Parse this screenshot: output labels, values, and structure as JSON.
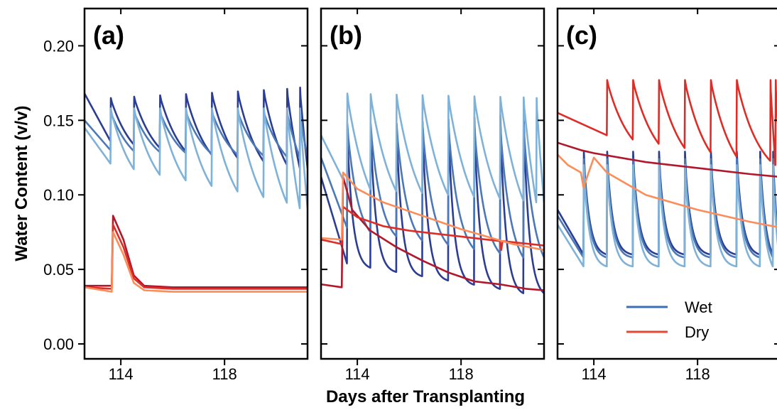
{
  "chart_data": {
    "type": "line",
    "xlabel": "Days after Transplanting",
    "ylabel": "Water Content (v/v)",
    "xlim": [
      112.6,
      121.2
    ],
    "ylim": [
      -0.01,
      0.225
    ],
    "x_ticks": [
      114,
      118
    ],
    "y_ticks": [
      0.0,
      0.05,
      0.1,
      0.15,
      0.2
    ],
    "y_tick_labels": [
      "0.00",
      "0.05",
      "0.10",
      "0.15",
      "0.20"
    ],
    "legend": {
      "placement": "bottom-right of panel (c)",
      "entries": [
        {
          "label": "Wet",
          "color": "#3a6fb7"
        },
        {
          "label": "Dry",
          "color": "#e34a33"
        }
      ]
    },
    "panels": [
      {
        "label": "(a)",
        "series": [
          {
            "group": "wet",
            "color": "#2c3e94",
            "start_x": 112.6,
            "start_y": 0.168,
            "tip": 0.165,
            "trough": 0.136,
            "tip_trend": 0.007,
            "trough_trend": -0.018,
            "recess": "slow",
            "events": [
              113.6,
              114.5,
              115.5,
              116.5,
              117.5,
              118.5,
              119.5,
              120.4,
              120.9
            ],
            "end_x": 121.2
          },
          {
            "group": "wet",
            "color": "#4a78b8",
            "start_x": 112.6,
            "start_y": 0.15,
            "tip": 0.156,
            "trough": 0.13,
            "tip_trend": 0.0,
            "trough_trend": -0.005,
            "recess": "slow",
            "events": [
              113.6,
              114.5,
              115.5,
              116.5,
              117.5,
              118.5,
              119.5,
              120.4,
              120.9
            ],
            "end_x": 121.2
          },
          {
            "group": "wet",
            "color": "#7fb2d9",
            "start_x": 112.6,
            "start_y": 0.145,
            "tip": 0.158,
            "trough": 0.121,
            "tip_trend": 0.0,
            "trough_trend": -0.03,
            "recess": "slow",
            "events": [
              113.6,
              114.5,
              115.5,
              116.5,
              117.5,
              118.5,
              119.5,
              120.4,
              120.9
            ],
            "end_x": 121.2
          },
          {
            "group": "dry",
            "color": "#b2182b",
            "points": [
              [
                112.6,
                0.039
              ],
              [
                113.65,
                0.039
              ],
              [
                113.7,
                0.086
              ],
              [
                114.1,
                0.07
              ],
              [
                114.5,
                0.046
              ],
              [
                114.9,
                0.039
              ],
              [
                116.0,
                0.038
              ],
              [
                119.0,
                0.038
              ],
              [
                121.2,
                0.038
              ]
            ]
          },
          {
            "group": "dry",
            "color": "#de2d26",
            "points": [
              [
                112.6,
                0.038
              ],
              [
                113.65,
                0.037
              ],
              [
                113.7,
                0.08
              ],
              [
                114.1,
                0.065
              ],
              [
                114.5,
                0.044
              ],
              [
                114.9,
                0.038
              ],
              [
                116.0,
                0.037
              ],
              [
                119.0,
                0.037
              ],
              [
                121.2,
                0.037
              ]
            ]
          },
          {
            "group": "dry",
            "color": "#fc8d59",
            "points": [
              [
                112.6,
                0.038
              ],
              [
                113.65,
                0.035
              ],
              [
                113.7,
                0.075
              ],
              [
                114.1,
                0.06
              ],
              [
                114.5,
                0.041
              ],
              [
                114.9,
                0.036
              ],
              [
                116.0,
                0.035
              ],
              [
                119.0,
                0.035
              ],
              [
                121.2,
                0.035
              ]
            ]
          }
        ]
      },
      {
        "label": "(b)",
        "series": [
          {
            "group": "wet",
            "color": "#2c3e94",
            "start_x": 112.6,
            "start_y": 0.112,
            "tip": 0.145,
            "trough": 0.054,
            "tip_trend": 0.01,
            "trough_trend": -0.02,
            "recess": "fast",
            "events": [
              113.6,
              114.5,
              115.5,
              116.5,
              117.5,
              118.5,
              119.5,
              120.4
            ],
            "end_x": 121.2
          },
          {
            "group": "wet",
            "color": "#4a78b8",
            "start_x": 112.6,
            "start_y": 0.125,
            "tip": 0.148,
            "trough": 0.078,
            "tip_trend": 0.0,
            "trough_trend": -0.02,
            "recess": "medium",
            "events": [
              113.6,
              114.5,
              115.5,
              116.5,
              117.5,
              118.5,
              119.5,
              120.4
            ],
            "end_x": 121.2
          },
          {
            "group": "wet",
            "color": "#7fb2d9",
            "start_x": 112.6,
            "start_y": 0.14,
            "tip": 0.168,
            "trough": 0.105,
            "tip_trend": -0.003,
            "trough_trend": -0.01,
            "recess": "slow",
            "events": [
              113.6,
              114.5,
              115.5,
              116.5,
              117.5,
              118.5,
              119.5,
              120.4,
              120.9
            ],
            "end_x": 121.2
          },
          {
            "group": "dry",
            "color": "#b2182b",
            "points": [
              [
                112.6,
                0.04
              ],
              [
                113.4,
                0.038
              ],
              [
                113.45,
                0.112
              ],
              [
                113.8,
                0.09
              ],
              [
                114.5,
                0.076
              ],
              [
                115.5,
                0.065
              ],
              [
                116.5,
                0.056
              ],
              [
                117.5,
                0.048
              ],
              [
                118.5,
                0.042
              ],
              [
                119.5,
                0.04
              ],
              [
                120.5,
                0.037
              ],
              [
                121.2,
                0.036
              ]
            ]
          },
          {
            "group": "dry",
            "color": "#de2d26",
            "points": [
              [
                112.6,
                0.07
              ],
              [
                113.4,
                0.067
              ],
              [
                113.45,
                0.092
              ],
              [
                114.0,
                0.085
              ],
              [
                115.0,
                0.079
              ],
              [
                116.0,
                0.076
              ],
              [
                117.0,
                0.074
              ],
              [
                118.0,
                0.072
              ],
              [
                119.0,
                0.07
              ],
              [
                119.5,
                0.069
              ],
              [
                119.55,
                0.063
              ],
              [
                119.6,
                0.069
              ],
              [
                121.2,
                0.066
              ]
            ]
          },
          {
            "group": "dry",
            "color": "#fc8d59",
            "points": [
              [
                112.6,
                0.071
              ],
              [
                113.4,
                0.07
              ],
              [
                113.45,
                0.115
              ],
              [
                114.0,
                0.104
              ],
              [
                115.0,
                0.095
              ],
              [
                116.0,
                0.089
              ],
              [
                117.0,
                0.083
              ],
              [
                118.0,
                0.077
              ],
              [
                119.0,
                0.072
              ],
              [
                120.0,
                0.067
              ],
              [
                121.2,
                0.063
              ]
            ]
          }
        ]
      },
      {
        "label": "(c)",
        "series": [
          {
            "group": "wet",
            "color": "#2c3e94",
            "start_x": 112.6,
            "start_y": 0.09,
            "tip": 0.129,
            "trough": 0.06,
            "tip_trend": 0.0,
            "trough_trend": 0.0,
            "recess": "fast",
            "events": [
              113.6,
              114.5,
              115.5,
              116.5,
              117.5,
              118.5,
              119.5,
              120.4,
              120.9
            ],
            "end_x": 121.2
          },
          {
            "group": "wet",
            "color": "#4a78b8",
            "start_x": 112.6,
            "start_y": 0.086,
            "tip": 0.124,
            "trough": 0.058,
            "tip_trend": 0.0,
            "trough_trend": 0.0,
            "recess": "fast",
            "events": [
              113.6,
              114.5,
              115.5,
              116.5,
              117.5,
              118.5,
              119.5,
              120.4,
              120.9
            ],
            "end_x": 121.2
          },
          {
            "group": "wet",
            "color": "#7fb2d9",
            "start_x": 112.6,
            "start_y": 0.08,
            "tip": 0.12,
            "trough": 0.052,
            "tip_trend": 0.0,
            "trough_trend": 0.0,
            "recess": "fast",
            "events": [
              113.6,
              114.5,
              115.5,
              116.5,
              117.5,
              118.5,
              119.5,
              120.4,
              120.9
            ],
            "end_x": 121.2
          },
          {
            "group": "dry",
            "color": "#de2d26",
            "start_x": 112.6,
            "start_y": 0.155,
            "tip": 0.177,
            "trough": 0.14,
            "tip_trend": 0.0,
            "trough_trend": -0.02,
            "recess": "slow",
            "events": [
              114.5,
              115.5,
              116.5,
              117.5,
              118.5,
              119.5,
              120.8,
              121.0
            ],
            "end_x": 121.2
          },
          {
            "group": "dry",
            "color": "#b2182b",
            "points": [
              [
                112.6,
                0.135
              ],
              [
                113.5,
                0.13
              ],
              [
                114.0,
                0.128
              ],
              [
                115.0,
                0.125
              ],
              [
                116.0,
                0.122
              ],
              [
                117.0,
                0.12
              ],
              [
                118.0,
                0.118
              ],
              [
                119.0,
                0.116
              ],
              [
                120.0,
                0.114
              ],
              [
                121.2,
                0.112
              ]
            ]
          },
          {
            "group": "dry",
            "color": "#fc8d59",
            "points": [
              [
                112.6,
                0.127
              ],
              [
                113.0,
                0.12
              ],
              [
                113.5,
                0.115
              ],
              [
                113.6,
                0.105
              ],
              [
                114.0,
                0.125
              ],
              [
                114.5,
                0.115
              ],
              [
                115.0,
                0.11
              ],
              [
                116.0,
                0.1
              ],
              [
                117.0,
                0.095
              ],
              [
                118.0,
                0.09
              ],
              [
                119.0,
                0.086
              ],
              [
                120.0,
                0.082
              ],
              [
                121.2,
                0.078
              ]
            ]
          }
        ]
      }
    ]
  }
}
